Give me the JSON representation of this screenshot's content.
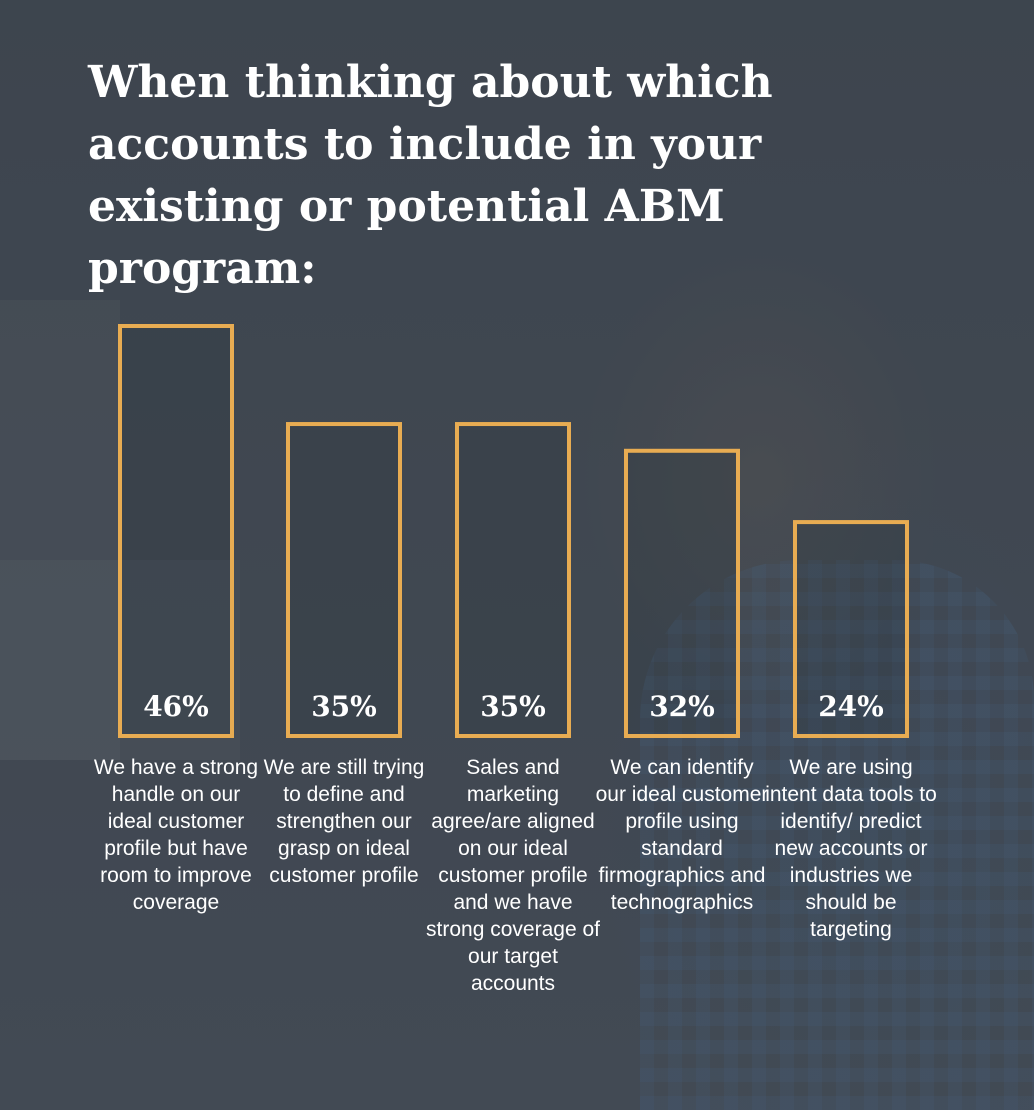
{
  "title": "When thinking about which accounts to include in your existing or potential ABM program:",
  "chart_data": {
    "type": "bar",
    "categories": [
      "We have a strong handle on our ideal customer profile but have room to improve coverage",
      "We are still trying to define and strengthen our grasp on ideal customer profile",
      "Sales and marketing agree/are aligned on our ideal customer profile and we have strong coverage of our target accounts",
      "We can identify our ideal customer profile using standard firmographics and technographics",
      "We are using intent data tools to identify/ predict new accounts or industries we should be targeting"
    ],
    "values": [
      46,
      35,
      35,
      32,
      24
    ],
    "value_labels": [
      "46%",
      "35%",
      "35%",
      "32%",
      "24%"
    ],
    "unit": "%",
    "ylim": [
      0,
      46
    ],
    "grid": false,
    "legend": "none",
    "bar_color": "#e8ac52"
  }
}
